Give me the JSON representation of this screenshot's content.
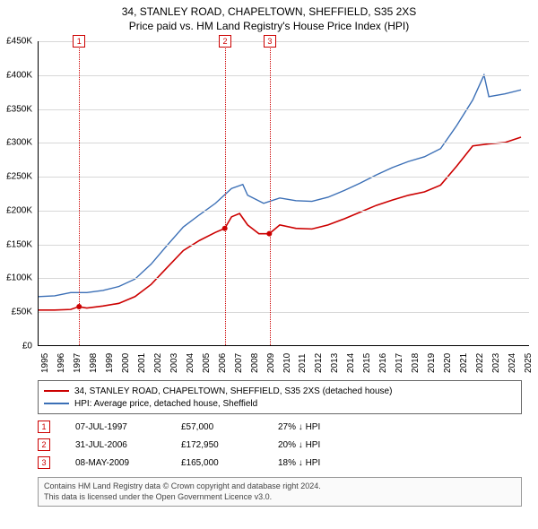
{
  "title_line1": "34, STANLEY ROAD, CHAPELTOWN, SHEFFIELD, S35 2XS",
  "title_line2": "Price paid vs. HM Land Registry's House Price Index (HPI)",
  "chart": {
    "type": "line",
    "background_color": "#ffffff",
    "grid_color": "#d8d8d8",
    "axis_color": "#000000",
    "xlim": [
      1995,
      2025.5
    ],
    "ylim": [
      0,
      450000
    ],
    "ytick_step": 50000,
    "ylabels": [
      "£0",
      "£50K",
      "£100K",
      "£150K",
      "£200K",
      "£250K",
      "£300K",
      "£350K",
      "£400K",
      "£450K"
    ],
    "xlabels": [
      "1995",
      "1996",
      "1997",
      "1998",
      "1999",
      "2000",
      "2001",
      "2002",
      "2003",
      "2004",
      "2005",
      "2006",
      "2007",
      "2008",
      "2009",
      "2010",
      "2011",
      "2012",
      "2013",
      "2014",
      "2015",
      "2016",
      "2017",
      "2018",
      "2019",
      "2020",
      "2021",
      "2022",
      "2023",
      "2024",
      "2025"
    ],
    "label_fontsize": 10,
    "series": [
      {
        "name": "price_paid",
        "color": "#cc0000",
        "width": 1.6,
        "points": [
          [
            1995,
            52000
          ],
          [
            1996,
            52000
          ],
          [
            1997,
            53000
          ],
          [
            1997.5,
            57000
          ],
          [
            1998,
            55000
          ],
          [
            1999,
            58000
          ],
          [
            2000,
            62000
          ],
          [
            2001,
            72000
          ],
          [
            2002,
            90000
          ],
          [
            2003,
            115000
          ],
          [
            2004,
            140000
          ],
          [
            2005,
            155000
          ],
          [
            2006,
            167000
          ],
          [
            2006.58,
            172950
          ],
          [
            2007,
            190000
          ],
          [
            2007.5,
            195000
          ],
          [
            2008,
            178000
          ],
          [
            2008.7,
            165000
          ],
          [
            2009.35,
            165000
          ],
          [
            2010,
            178000
          ],
          [
            2011,
            173000
          ],
          [
            2012,
            172000
          ],
          [
            2013,
            178000
          ],
          [
            2014,
            187000
          ],
          [
            2015,
            197000
          ],
          [
            2016,
            207000
          ],
          [
            2017,
            215000
          ],
          [
            2018,
            222000
          ],
          [
            2019,
            227000
          ],
          [
            2020,
            237000
          ],
          [
            2021,
            265000
          ],
          [
            2022,
            295000
          ],
          [
            2023,
            298000
          ],
          [
            2024,
            300000
          ],
          [
            2025,
            308000
          ]
        ]
      },
      {
        "name": "hpi",
        "color": "#3b6fb6",
        "width": 1.4,
        "points": [
          [
            1995,
            72000
          ],
          [
            1996,
            73000
          ],
          [
            1997,
            78000
          ],
          [
            1998,
            78000
          ],
          [
            1999,
            81000
          ],
          [
            2000,
            87000
          ],
          [
            2001,
            98000
          ],
          [
            2002,
            120000
          ],
          [
            2003,
            148000
          ],
          [
            2004,
            175000
          ],
          [
            2005,
            193000
          ],
          [
            2006,
            210000
          ],
          [
            2007,
            232000
          ],
          [
            2007.7,
            238000
          ],
          [
            2008,
            222000
          ],
          [
            2009,
            210000
          ],
          [
            2010,
            218000
          ],
          [
            2011,
            214000
          ],
          [
            2012,
            213000
          ],
          [
            2013,
            219000
          ],
          [
            2014,
            229000
          ],
          [
            2015,
            240000
          ],
          [
            2016,
            252000
          ],
          [
            2017,
            263000
          ],
          [
            2018,
            272000
          ],
          [
            2019,
            279000
          ],
          [
            2020,
            291000
          ],
          [
            2021,
            325000
          ],
          [
            2022,
            363000
          ],
          [
            2022.7,
            400000
          ],
          [
            2023,
            368000
          ],
          [
            2024,
            372000
          ],
          [
            2025,
            378000
          ]
        ]
      }
    ],
    "markers": [
      {
        "n": "1",
        "x": 1997.52,
        "color": "#cc0000"
      },
      {
        "n": "2",
        "x": 2006.58,
        "color": "#cc0000"
      },
      {
        "n": "3",
        "x": 2009.35,
        "color": "#cc0000"
      }
    ],
    "sale_points": [
      {
        "x": 1997.52,
        "y": 57000,
        "color": "#cc0000"
      },
      {
        "x": 2006.58,
        "y": 172950,
        "color": "#cc0000"
      },
      {
        "x": 2009.35,
        "y": 165000,
        "color": "#cc0000"
      }
    ]
  },
  "legend": {
    "items": [
      {
        "color": "#cc0000",
        "label": "34, STANLEY ROAD, CHAPELTOWN, SHEFFIELD, S35 2XS (detached house)"
      },
      {
        "color": "#3b6fb6",
        "label": "HPI: Average price, detached house, Sheffield"
      }
    ]
  },
  "events": [
    {
      "n": "1",
      "color": "#cc0000",
      "date": "07-JUL-1997",
      "price": "£57,000",
      "diff": "27% ↓ HPI"
    },
    {
      "n": "2",
      "color": "#cc0000",
      "date": "31-JUL-2006",
      "price": "£172,950",
      "diff": "20% ↓ HPI"
    },
    {
      "n": "3",
      "color": "#cc0000",
      "date": "08-MAY-2009",
      "price": "£165,000",
      "diff": "18% ↓ HPI"
    }
  ],
  "footer": {
    "line1": "Contains HM Land Registry data © Crown copyright and database right 2024.",
    "line2": "This data is licensed under the Open Government Licence v3.0."
  }
}
